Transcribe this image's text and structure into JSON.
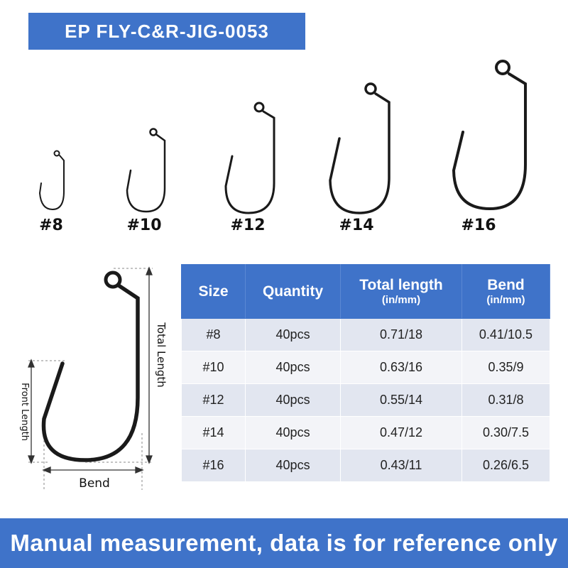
{
  "title": "EP FLY-C&R-JIG-0053",
  "hook_sizes": [
    "#8",
    "#10",
    "#12",
    "#14",
    "#16"
  ],
  "diagram": {
    "total_length_label": "Total Length",
    "front_length_label": "Front Length",
    "bend_label": "Bend"
  },
  "table": {
    "headers": [
      {
        "label": "Size",
        "unit": ""
      },
      {
        "label": "Quantity",
        "unit": ""
      },
      {
        "label": "Total length",
        "unit": "(in/mm)"
      },
      {
        "label": "Bend",
        "unit": "(in/mm)"
      }
    ],
    "rows": [
      [
        "#8",
        "40pcs",
        "0.71/18",
        "0.41/10.5"
      ],
      [
        "#10",
        "40pcs",
        "0.63/16",
        "0.35/9"
      ],
      [
        "#12",
        "40pcs",
        "0.55/14",
        "0.31/8"
      ],
      [
        "#14",
        "40pcs",
        "0.47/12",
        "0.30/7.5"
      ],
      [
        "#16",
        "40pcs",
        "0.43/11",
        "0.26/6.5"
      ]
    ]
  },
  "footer": "Manual measurement, data is for reference only",
  "colors": {
    "accent": "#3f73c9",
    "row_dark": "#e2e6f0",
    "row_light": "#f3f4f8",
    "hook": "#1a1a1a"
  }
}
